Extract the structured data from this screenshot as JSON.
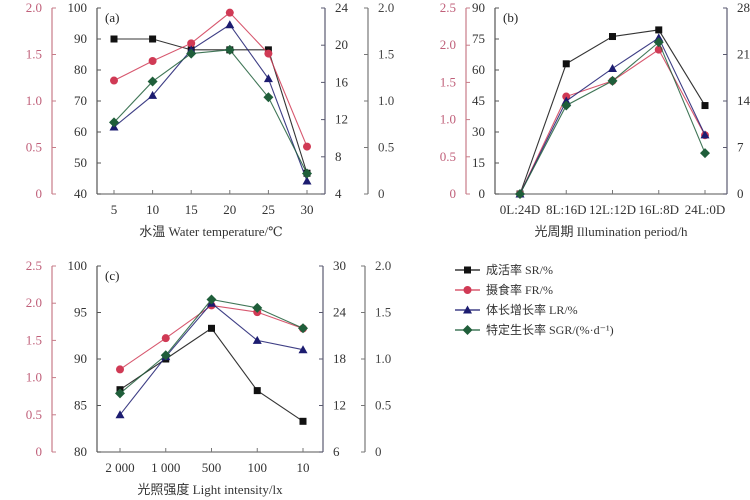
{
  "colors": {
    "SR": "#111111",
    "FR": "#d03a55",
    "LR": "#1c1c70",
    "SGR": "#1f5e3a",
    "axis_FR": "#c77c88",
    "axis_SR": "#555555",
    "axis_LR": "#5a5a70",
    "axis_SGR": "#777777"
  },
  "legend": [
    {
      "key": "SR",
      "label": "成活率 SR/%",
      "marker": "square"
    },
    {
      "key": "FR",
      "label": "摄食率 FR/%",
      "marker": "circle"
    },
    {
      "key": "LR",
      "label": "体长增长率 LR/%",
      "marker": "triangle"
    },
    {
      "key": "SGR",
      "label": "特定生长率 SGR/(%·d⁻¹)",
      "marker": "diamond"
    }
  ],
  "chart_data": [
    {
      "type": "line",
      "panel_label": "(a)",
      "xlabel": "水温 Water temperature/℃",
      "categories": [
        "5",
        "10",
        "15",
        "20",
        "25",
        "30"
      ],
      "axes": {
        "FR": {
          "ylim": [
            0,
            2.0
          ],
          "ticks": [
            "0",
            "0.5",
            "1.0",
            "1.5",
            "2.0"
          ]
        },
        "SR": {
          "ylim": [
            40,
            100
          ],
          "ticks": [
            "40",
            "50",
            "60",
            "70",
            "80",
            "90",
            "100"
          ]
        },
        "LR": {
          "ylim": [
            4,
            24
          ],
          "ticks": [
            "4",
            "8",
            "12",
            "16",
            "20",
            "24"
          ]
        },
        "SGR": {
          "ylim": [
            0,
            2.0
          ],
          "ticks": [
            "0",
            "0.5",
            "1.0",
            "1.5",
            "2.0"
          ]
        }
      },
      "series": [
        {
          "name": "SR",
          "values": [
            90,
            90,
            86.5,
            86.5,
            86.5,
            46.7
          ]
        },
        {
          "name": "FR",
          "values": [
            1.22,
            1.43,
            1.62,
            1.95,
            1.51,
            0.51
          ]
        },
        {
          "name": "LR",
          "values": [
            11.2,
            14.6,
            19.5,
            22.2,
            16.4,
            5.4
          ]
        },
        {
          "name": "SGR",
          "values": [
            0.77,
            1.21,
            1.51,
            1.55,
            1.04,
            0.22
          ]
        }
      ]
    },
    {
      "type": "line",
      "panel_label": "(b)",
      "xlabel": "光周期 Illumination period/h",
      "categories": [
        "0L:24D",
        "8L:16D",
        "12L:12D",
        "16L:8D",
        "24L:0D"
      ],
      "axes": {
        "FR": {
          "ylim": [
            0,
            2.5
          ],
          "ticks": [
            "0",
            "0.5",
            "1.0",
            "1.5",
            "2.0",
            "2.5"
          ]
        },
        "SR": {
          "ylim": [
            0,
            90
          ],
          "ticks": [
            "0",
            "15",
            "30",
            "45",
            "60",
            "75",
            "90"
          ]
        },
        "LR": {
          "ylim": [
            0,
            28
          ],
          "ticks": [
            "0",
            "7",
            "14",
            "21",
            "28"
          ]
        },
        "SGR": {
          "ylim": [
            0,
            2.5
          ],
          "ticks": []
        }
      },
      "series": [
        {
          "name": "SR",
          "values": [
            0,
            63,
            76.2,
            79.4,
            42.8
          ]
        },
        {
          "name": "FR",
          "values": [
            0,
            1.31,
            1.52,
            1.94,
            0.79
          ]
        },
        {
          "name": "LR",
          "values": [
            0,
            14.0,
            18.9,
            23.5,
            8.9
          ]
        },
        {
          "name": "SGR",
          "values": [
            0,
            1.19,
            1.52,
            2.04,
            0.55
          ]
        }
      ]
    },
    {
      "type": "line",
      "panel_label": "(c)",
      "xlabel": "光照强度 Light intensity/lx",
      "categories": [
        "2 000",
        "1 000",
        "500",
        "100",
        "10"
      ],
      "axes": {
        "FR": {
          "ylim": [
            0,
            2.5
          ],
          "ticks": [
            "0",
            "0.5",
            "1.0",
            "1.5",
            "2.0",
            "2.5"
          ]
        },
        "SR": {
          "ylim": [
            80,
            100
          ],
          "ticks": [
            "80",
            "85",
            "90",
            "95",
            "100"
          ]
        },
        "LR": {
          "ylim": [
            6,
            30
          ],
          "ticks": [
            "6",
            "12",
            "18",
            "24",
            "30"
          ]
        },
        "SGR": {
          "ylim": [
            0,
            2.0
          ],
          "ticks": [
            "0",
            "0.5",
            "1.0",
            "1.5",
            "2.0"
          ]
        }
      },
      "series": [
        {
          "name": "SR",
          "values": [
            86.7,
            90.0,
            93.3,
            86.6,
            83.3
          ]
        },
        {
          "name": "FR",
          "values": [
            1.11,
            1.53,
            1.97,
            1.88,
            1.66
          ]
        },
        {
          "name": "LR",
          "values": [
            10.8,
            18.3,
            25.2,
            20.4,
            19.2
          ]
        },
        {
          "name": "SGR",
          "values": [
            0.63,
            1.04,
            1.64,
            1.55,
            1.33
          ]
        }
      ]
    }
  ]
}
